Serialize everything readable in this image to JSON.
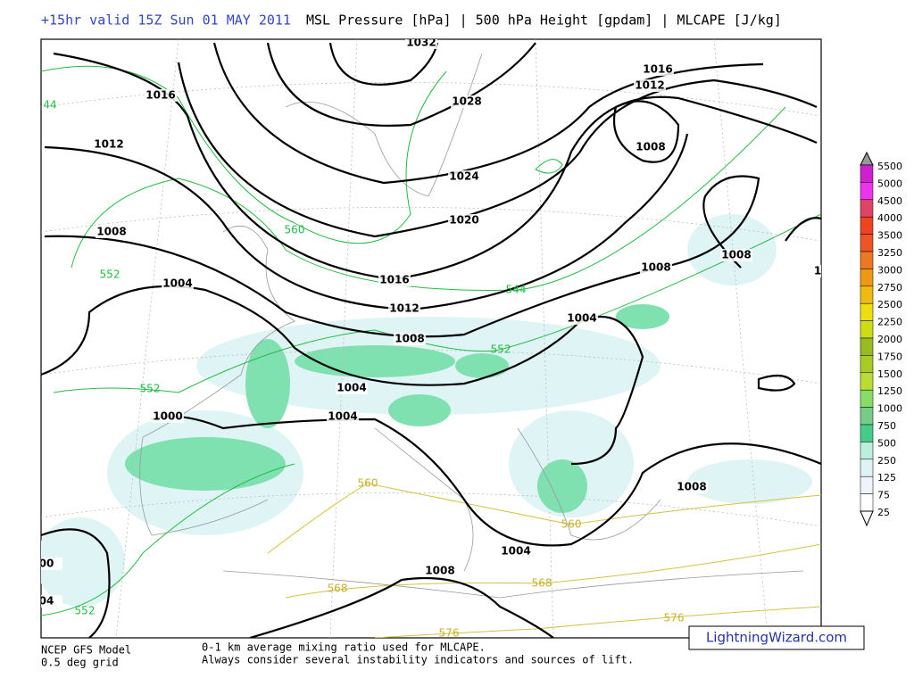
{
  "header": {
    "valid": "+15hr valid 15Z Sun 01 MAY 2011",
    "fields": "MSL Pressure [hPa] | 500 hPa Height [gpdam] | MLCAPE [J/kg]"
  },
  "isobar_labels": [
    "1032",
    "1028",
    "1024",
    "1020",
    "1016",
    "1012",
    "1008",
    "1004",
    "1004",
    "1004",
    "1004",
    "1008",
    "1008",
    "1008",
    "1012",
    "1016",
    "1016",
    "1012",
    "1008",
    "1008",
    "1008",
    "1004",
    "1000",
    "00",
    "04",
    "1"
  ],
  "height_labels": [
    "560",
    "552",
    "544",
    "552",
    "552",
    "552",
    "44",
    "560",
    "560",
    "568",
    "568",
    "576",
    "576"
  ],
  "colorbar": {
    "labels": [
      "5500",
      "5000",
      "4500",
      "4000",
      "3500",
      "3250",
      "3000",
      "2750",
      "2500",
      "2250",
      "2000",
      "1750",
      "1500",
      "1250",
      "1000",
      "750",
      "500",
      "250",
      "125",
      "75",
      "25"
    ]
  },
  "footer": {
    "model": "NCEP GFS Model",
    "grid": "0.5 deg grid",
    "note1": "0-1 km average mixing ratio used for MLCAPE.",
    "note2": "Always consider several instability indicators and sources of lift.",
    "credit": "LightningWizard.com"
  }
}
